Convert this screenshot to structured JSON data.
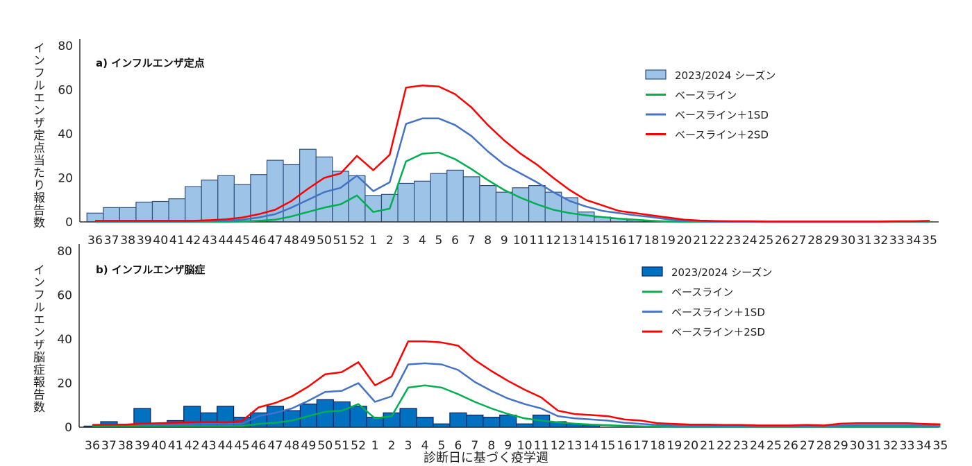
{
  "weeks": [
    "36",
    "37",
    "38",
    "39",
    "40",
    "41",
    "42",
    "43",
    "44",
    "45",
    "46",
    "47",
    "48",
    "49",
    "50",
    "51",
    "52",
    "1",
    "2",
    "3",
    "4",
    "5",
    "6",
    "7",
    "8",
    "9",
    "10",
    "11",
    "12",
    "13",
    "14",
    "15",
    "16",
    "17",
    "18",
    "19",
    "20",
    "21",
    "22",
    "23",
    "24",
    "25",
    "26",
    "27",
    "28",
    "29",
    "30",
    "31",
    "32",
    "33",
    "34",
    "35"
  ],
  "xlabel": "診断日に基づく疫学週",
  "chart_data": [
    {
      "type": "bar",
      "title": "a) インフルエンザ定点",
      "ylabel": "インフルエンザ定点当たり報告数",
      "xlabel": "診断日に基づく疫学週",
      "ylim": [
        0,
        80
      ],
      "yticks": [
        "0",
        "20",
        "40",
        "60",
        "80"
      ],
      "legend_position": "top-right",
      "bar_color": "#9dc3e6",
      "bar_edge": "#2f4f7f",
      "series": [
        {
          "name": "2023/2024 シーズン",
          "kind": "bar",
          "color": "#9dc3e6",
          "values": [
            4,
            6.5,
            6.5,
            9,
            9.3,
            10.5,
            16,
            19,
            21,
            17,
            21.5,
            28,
            26,
            33,
            29.5,
            23,
            21,
            12,
            12.5,
            17.5,
            18.5,
            22,
            23.5,
            20.5,
            16.5,
            13.5,
            15.5,
            16.5,
            13.5,
            11,
            4.5,
            2.2,
            1.5,
            0.8,
            0.4,
            0.2,
            0,
            0,
            0,
            0,
            0,
            0,
            0,
            0,
            0,
            0,
            0,
            0,
            0,
            0,
            0,
            0
          ]
        },
        {
          "name": "ベースライン",
          "kind": "line",
          "color": "#00b050",
          "values": [
            0,
            0,
            0,
            0,
            0,
            0,
            0,
            0,
            0,
            0.2,
            0.5,
            1,
            2.5,
            4.5,
            6.5,
            8,
            12,
            4.5,
            6,
            27.5,
            31,
            31.5,
            28.5,
            24,
            19,
            14.5,
            11,
            8,
            5.5,
            4,
            3,
            2.2,
            1.5,
            1,
            0.5,
            0.2,
            0,
            0,
            0,
            0,
            0,
            0,
            0,
            0,
            0,
            0,
            0,
            0,
            0,
            0,
            0,
            0
          ]
        },
        {
          "name": "ベースライン＋1SD",
          "kind": "line",
          "color": "#4472c4",
          "values": [
            0.2,
            0.2,
            0.2,
            0.2,
            0.2,
            0.2,
            0.2,
            0.3,
            0.5,
            1,
            2,
            3.5,
            6.5,
            10,
            13.5,
            15.5,
            21,
            14,
            18,
            44.5,
            47,
            47,
            44,
            39,
            32,
            26,
            22,
            18,
            13.5,
            9.5,
            7,
            5,
            4,
            3,
            2.2,
            1.2,
            0.5,
            0.2,
            0.1,
            0.1,
            0.1,
            0.1,
            0.1,
            0.1,
            0.1,
            0.1,
            0.1,
            0.1,
            0.1,
            0.2,
            0.2,
            0.2
          ]
        },
        {
          "name": "ベースライン＋2SD",
          "kind": "line",
          "color": "#ff0000",
          "values": [
            0.5,
            0.5,
            0.5,
            0.5,
            0.5,
            0.5,
            0.5,
            0.8,
            1.2,
            2,
            3.5,
            5.5,
            9.5,
            15,
            20,
            22,
            30,
            23.5,
            30.5,
            61,
            62,
            61.5,
            58,
            52,
            44,
            37,
            31,
            26,
            20,
            14.5,
            10,
            7.5,
            5,
            4,
            3,
            2,
            1,
            0.6,
            0.4,
            0.3,
            0.3,
            0.2,
            0.2,
            0.2,
            0.2,
            0.2,
            0.2,
            0.2,
            0.2,
            0.3,
            0.3,
            0.5
          ]
        }
      ]
    },
    {
      "type": "bar",
      "title": "b) インフルエンザ脳症",
      "ylabel": "インフルエンザ脳症報告数",
      "xlabel": "診断日に基づく疫学週",
      "ylim": [
        0,
        80
      ],
      "yticks": [
        "0",
        "20",
        "40",
        "60",
        "80"
      ],
      "legend_position": "top-right",
      "bar_color": "#0070c0",
      "bar_edge": "#002060",
      "series": [
        {
          "name": "2023/2024 シーズン",
          "kind": "bar",
          "color": "#0070c0",
          "values": [
            0.5,
            2.5,
            1,
            8.5,
            1,
            3,
            9.5,
            6.5,
            9.5,
            4.5,
            6.5,
            9.5,
            7.5,
            10.5,
            12.5,
            11.5,
            9.5,
            4.5,
            6.5,
            8.5,
            4.5,
            1.5,
            6.5,
            5.5,
            4.5,
            5.5,
            1.5,
            5.5,
            2.5,
            1.5,
            1,
            0,
            0,
            0,
            0,
            0,
            0,
            0,
            0,
            0,
            0,
            0,
            0,
            0,
            0,
            0,
            0,
            0,
            0,
            0,
            0,
            0
          ]
        },
        {
          "name": "ベースライン",
          "kind": "line",
          "color": "#00b050",
          "values": [
            0.5,
            0.5,
            0.5,
            0.5,
            0.5,
            0.5,
            0.5,
            0.5,
            0.5,
            0.5,
            1.5,
            2,
            3,
            5,
            7,
            7.5,
            10.5,
            4,
            5,
            18,
            19,
            18,
            15,
            11.5,
            8.5,
            6,
            4,
            3,
            2.2,
            1.6,
            1.2,
            0.9,
            0.6,
            0.4,
            0.3,
            0.2,
            0.2,
            0.2,
            0.2,
            0.2,
            0.2,
            0.2,
            0.2,
            0.2,
            0.2,
            0.2,
            0.2,
            0.2,
            0.2,
            0.2,
            0.2,
            0.2
          ]
        },
        {
          "name": "ベースライン＋1SD",
          "kind": "line",
          "color": "#4472c4",
          "values": [
            1,
            1,
            1,
            1.2,
            1.2,
            1.3,
            1.4,
            1.5,
            1.5,
            1.5,
            5,
            6.5,
            8.5,
            12,
            16,
            16.5,
            20,
            11.5,
            14,
            28.5,
            29,
            28.5,
            26,
            20.5,
            16.5,
            13,
            10.5,
            8.5,
            5,
            4,
            3.5,
            3,
            2,
            1.5,
            1,
            0.8,
            0.6,
            0.6,
            0.5,
            0.5,
            0.5,
            0.5,
            0.5,
            0.5,
            0.5,
            0.8,
            0.9,
            0.9,
            0.9,
            0.9,
            0.8,
            0.7
          ]
        },
        {
          "name": "ベースライン＋2SD",
          "kind": "line",
          "color": "#ff0000",
          "values": [
            1,
            1.2,
            1.2,
            1.6,
            1.8,
            2,
            2.2,
            2.4,
            2.2,
            2.8,
            9,
            11,
            14,
            18.5,
            24,
            25,
            29.5,
            19,
            23,
            39,
            39,
            38.5,
            37,
            30.5,
            25.5,
            21,
            17,
            13.5,
            7.5,
            6,
            5.5,
            5,
            3.5,
            3,
            1.8,
            1.5,
            1.2,
            1.2,
            1,
            1,
            0.8,
            0.8,
            0.8,
            1,
            0.8,
            1.6,
            1.8,
            1.8,
            1.8,
            1.8,
            1.5,
            1.3
          ]
        }
      ]
    }
  ]
}
